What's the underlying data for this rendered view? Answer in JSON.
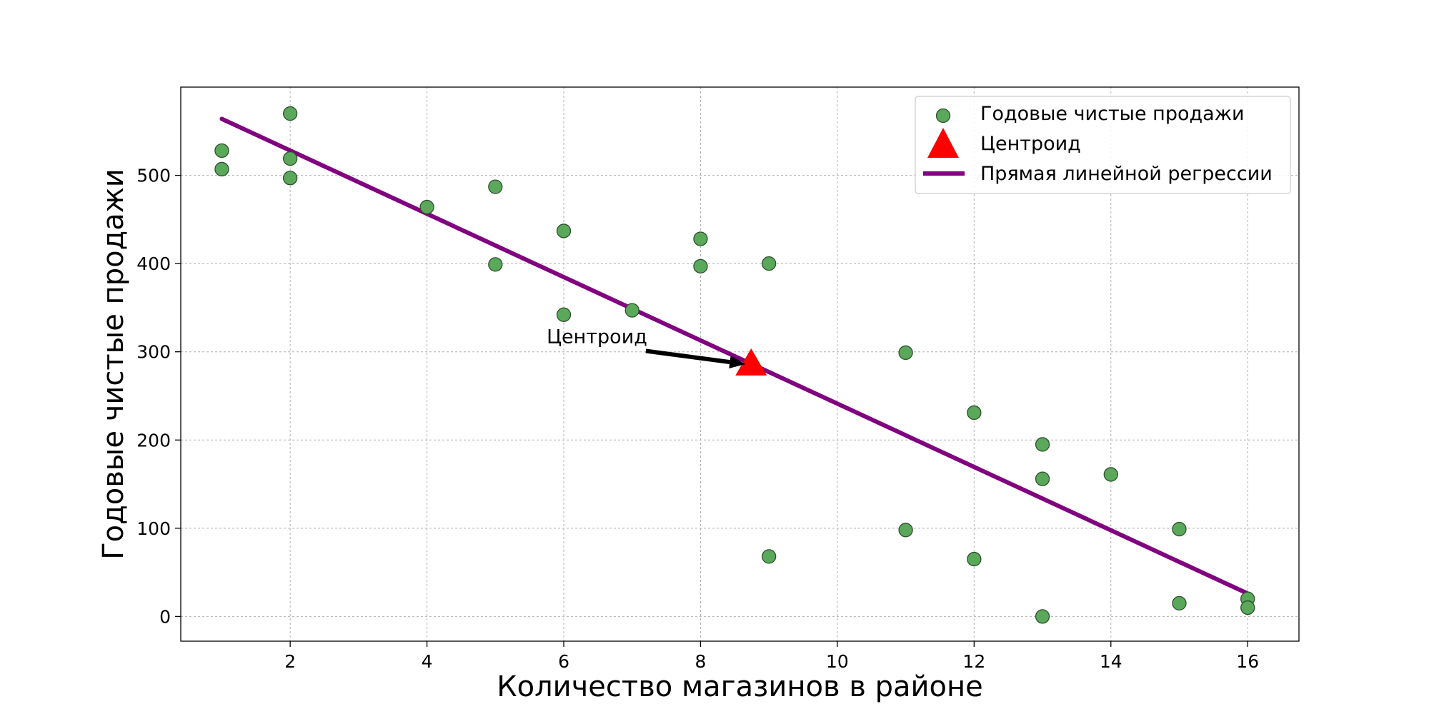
{
  "chart_data": {
    "type": "scatter",
    "xlabel": "Количество магазинов в районе",
    "ylabel": "Годовые чистые продажи",
    "xlim": [
      0.4,
      16.75
    ],
    "ylim": [
      -28,
      600
    ],
    "x_ticks": [
      2,
      4,
      6,
      8,
      10,
      12,
      14,
      16
    ],
    "y_ticks": [
      0,
      100,
      200,
      300,
      400,
      500
    ],
    "grid": true,
    "legend_position": "top-right",
    "series": [
      {
        "name": "Годовые чистые продажи",
        "kind": "scatter",
        "color": "#5aa85a",
        "points": [
          [
            1,
            528
          ],
          [
            1,
            507
          ],
          [
            2,
            570
          ],
          [
            2,
            519
          ],
          [
            2,
            497
          ],
          [
            4,
            464
          ],
          [
            5,
            487
          ],
          [
            5,
            399
          ],
          [
            6,
            437
          ],
          [
            6,
            342
          ],
          [
            7,
            347
          ],
          [
            8,
            428
          ],
          [
            8,
            397
          ],
          [
            9,
            400
          ],
          [
            9,
            68
          ],
          [
            11,
            299
          ],
          [
            11,
            98
          ],
          [
            12,
            231
          ],
          [
            12,
            65
          ],
          [
            13,
            195
          ],
          [
            13,
            156
          ],
          [
            13,
            0
          ],
          [
            14,
            161
          ],
          [
            15,
            99
          ],
          [
            15,
            15
          ],
          [
            16,
            20
          ],
          [
            16,
            10
          ]
        ]
      },
      {
        "name": "Центроид",
        "kind": "marker",
        "color": "#ff0000",
        "point": [
          8.74,
          286
        ]
      },
      {
        "name": "Прямая линейной регрессии",
        "kind": "line",
        "color": "#800080",
        "points": [
          [
            1,
            564
          ],
          [
            16,
            26
          ]
        ]
      }
    ],
    "annotation": {
      "text": "Центроид",
      "text_at": [
        5.75,
        310
      ],
      "arrow_from": [
        7.2,
        301
      ],
      "arrow_to": [
        8.74,
        286
      ]
    }
  }
}
